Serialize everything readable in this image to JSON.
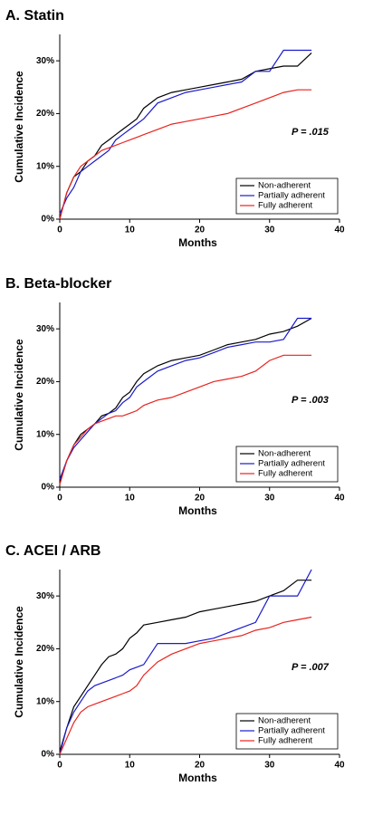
{
  "chart_data": [
    {
      "type": "line",
      "title": "A. Statin",
      "x_label": "Months",
      "y_label": "Cumulative Incidence",
      "annotation": "P = .015",
      "x": [
        0,
        1,
        2,
        3,
        4,
        5,
        6,
        7,
        8,
        9,
        10,
        11,
        12,
        14,
        16,
        18,
        20,
        22,
        24,
        26,
        28,
        30,
        32,
        34,
        36
      ],
      "series": [
        {
          "name": "Non-adherent",
          "color": "#000000",
          "values": [
            0,
            5,
            8,
            9,
            11,
            12,
            14,
            15,
            16,
            17,
            18,
            19,
            21,
            23,
            24,
            24.5,
            25,
            25.5,
            26,
            26.5,
            28,
            28.5,
            29,
            29,
            31.5
          ]
        },
        {
          "name": "Partially adherent",
          "color": "#1a1acc",
          "values": [
            1,
            4,
            6,
            9,
            10,
            11,
            12,
            13,
            15,
            16,
            17,
            18,
            19,
            22,
            23,
            24,
            24.5,
            25,
            25.5,
            26,
            28,
            28,
            32,
            32,
            32
          ]
        },
        {
          "name": "Fully adherent",
          "color": "#e8231e",
          "values": [
            0,
            5,
            8,
            10,
            11,
            12,
            13,
            13.5,
            14,
            14.5,
            15,
            15.5,
            16,
            17,
            18,
            18.5,
            19,
            19.5,
            20,
            21,
            22,
            23,
            24,
            24.5,
            24.5
          ]
        }
      ],
      "xlim": [
        0,
        40
      ],
      "xticks": [
        0,
        10,
        20,
        30,
        40
      ],
      "ylim": [
        0,
        35
      ],
      "yticks": [
        {
          "value": 0,
          "label": "0%"
        },
        {
          "value": 10,
          "label": "10%"
        },
        {
          "value": 20,
          "label": "20%"
        },
        {
          "value": 30,
          "label": "30%"
        }
      ],
      "legend": "lower right"
    },
    {
      "type": "line",
      "title": "B. Beta-blocker",
      "x_label": "Months",
      "y_label": "Cumulative Incidence",
      "annotation": "P = .003",
      "x": [
        0,
        1,
        2,
        3,
        4,
        5,
        6,
        7,
        8,
        9,
        10,
        11,
        12,
        14,
        16,
        18,
        20,
        22,
        24,
        26,
        28,
        30,
        32,
        34,
        36
      ],
      "series": [
        {
          "name": "Non-adherent",
          "color": "#000000",
          "values": [
            1,
            5,
            8,
            10,
            11,
            12,
            13.5,
            14,
            15,
            17,
            18,
            20,
            21.5,
            23,
            24,
            24.5,
            25,
            26,
            27,
            27.5,
            28,
            29,
            29.5,
            30.5,
            32
          ]
        },
        {
          "name": "Partially adherent",
          "color": "#1a1acc",
          "values": [
            1.5,
            5,
            7.5,
            9,
            10.5,
            12,
            13,
            14,
            14.5,
            16,
            17,
            19,
            20,
            22,
            23,
            24,
            24.5,
            25.5,
            26.5,
            27,
            27.5,
            27.5,
            28,
            32,
            32
          ]
        },
        {
          "name": "Fully adherent",
          "color": "#e8231e",
          "values": [
            0.5,
            5,
            8,
            9.5,
            11,
            12,
            12.5,
            13,
            13.5,
            13.5,
            14,
            14.5,
            15.5,
            16.5,
            17,
            18,
            19,
            20,
            20.5,
            21,
            22,
            24,
            25,
            25,
            25
          ]
        }
      ],
      "xlim": [
        0,
        40
      ],
      "xticks": [
        0,
        10,
        20,
        30,
        40
      ],
      "ylim": [
        0,
        35
      ],
      "yticks": [
        {
          "value": 0,
          "label": "0%"
        },
        {
          "value": 10,
          "label": "10%"
        },
        {
          "value": 20,
          "label": "20%"
        },
        {
          "value": 30,
          "label": "30%"
        }
      ],
      "legend": "lower right"
    },
    {
      "type": "line",
      "title": "C. ACEI / ARB",
      "x_label": "Months",
      "y_label": "Cumulative Incidence",
      "annotation": "P = .007",
      "x": [
        0,
        1,
        2,
        3,
        4,
        5,
        6,
        7,
        8,
        9,
        10,
        11,
        12,
        14,
        16,
        18,
        20,
        22,
        24,
        26,
        28,
        30,
        32,
        34,
        36
      ],
      "series": [
        {
          "name": "Non-adherent",
          "color": "#000000",
          "values": [
            0.5,
            5,
            9,
            11,
            13,
            15,
            17,
            18.5,
            19,
            20,
            22,
            23,
            24.5,
            25,
            25.5,
            26,
            27,
            27.5,
            28,
            28.5,
            29,
            30,
            31,
            33,
            33
          ]
        },
        {
          "name": "Partially adherent",
          "color": "#1a1acc",
          "values": [
            0,
            5,
            8,
            10,
            12,
            13,
            13.5,
            14,
            14.5,
            15,
            16,
            16.5,
            17,
            21,
            21,
            21,
            21.5,
            22,
            23,
            24,
            25,
            30,
            30,
            30,
            35
          ]
        },
        {
          "name": "Fully adherent",
          "color": "#e8231e",
          "values": [
            0,
            3,
            6,
            8,
            9,
            9.5,
            10,
            10.5,
            11,
            11.5,
            12,
            13,
            15,
            17.5,
            19,
            20,
            21,
            21.5,
            22,
            22.5,
            23.5,
            24,
            25,
            25.5,
            26
          ]
        }
      ],
      "xlim": [
        0,
        40
      ],
      "xticks": [
        0,
        10,
        20,
        30,
        40
      ],
      "ylim": [
        0,
        35
      ],
      "yticks": [
        {
          "value": 0,
          "label": "0%"
        },
        {
          "value": 10,
          "label": "10%"
        },
        {
          "value": 20,
          "label": "20%"
        },
        {
          "value": 30,
          "label": "30%"
        }
      ],
      "legend": "lower right"
    }
  ]
}
